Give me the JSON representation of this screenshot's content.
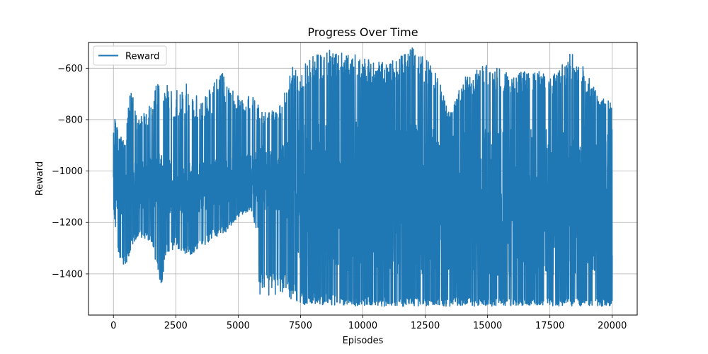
{
  "chart_data": {
    "type": "line",
    "title": "Progress Over Time",
    "xlabel": "Episodes",
    "ylabel": "Reward",
    "xlim": [
      -1000,
      21000
    ],
    "ylim": [
      -1560,
      -500
    ],
    "xticks": [
      0,
      2500,
      5000,
      7500,
      10000,
      12500,
      15000,
      17500,
      20000
    ],
    "xtick_labels": [
      "0",
      "2500",
      "5000",
      "7500",
      "10000",
      "12500",
      "15000",
      "17500",
      "20000"
    ],
    "yticks": [
      -1400,
      -1200,
      -1000,
      -800,
      -600
    ],
    "ytick_labels": [
      "−1400",
      "−1200",
      "−1000",
      "−800",
      "−600"
    ],
    "grid": true,
    "legend_position": "upper-left",
    "series": [
      {
        "name": "Reward",
        "color": "#1f77b4",
        "x_range": [
          0,
          20000
        ],
        "band_low": [
          [
            0,
            -1150
          ],
          [
            200,
            -1340
          ],
          [
            500,
            -1380
          ],
          [
            700,
            -1300
          ],
          [
            1000,
            -1250
          ],
          [
            1500,
            -1280
          ],
          [
            1800,
            -1400
          ],
          [
            1900,
            -1470
          ],
          [
            2100,
            -1320
          ],
          [
            2500,
            -1300
          ],
          [
            3000,
            -1330
          ],
          [
            3500,
            -1300
          ],
          [
            4000,
            -1260
          ],
          [
            4500,
            -1240
          ],
          [
            5000,
            -1180
          ],
          [
            5500,
            -1150
          ],
          [
            5800,
            -1250
          ],
          [
            5850,
            -1490
          ],
          [
            7000,
            -1495
          ],
          [
            7500,
            -1520
          ],
          [
            10000,
            -1525
          ],
          [
            12500,
            -1525
          ],
          [
            15000,
            -1525
          ],
          [
            17500,
            -1525
          ],
          [
            20000,
            -1525
          ]
        ],
        "band_mid_low": [
          [
            0,
            -1100
          ],
          [
            500,
            -1250
          ],
          [
            1000,
            -1150
          ],
          [
            1500,
            -1150
          ],
          [
            2000,
            -1200
          ],
          [
            2500,
            -1150
          ],
          [
            3000,
            -1200
          ],
          [
            3500,
            -1150
          ],
          [
            4000,
            -1150
          ],
          [
            4500,
            -1150
          ],
          [
            5000,
            -1100
          ],
          [
            5500,
            -1100
          ],
          [
            6000,
            -1150
          ],
          [
            6500,
            -1150
          ],
          [
            7000,
            -1200
          ],
          [
            7500,
            -1350
          ],
          [
            10000,
            -1400
          ],
          [
            12500,
            -1400
          ],
          [
            15000,
            -1420
          ],
          [
            17500,
            -1420
          ],
          [
            20000,
            -1420
          ]
        ],
        "band_mid_high": [
          [
            0,
            -850
          ],
          [
            500,
            -1000
          ],
          [
            1000,
            -950
          ],
          [
            1500,
            -950
          ],
          [
            2000,
            -900
          ],
          [
            2500,
            -1000
          ],
          [
            3000,
            -950
          ],
          [
            3500,
            -950
          ],
          [
            4000,
            -950
          ],
          [
            4500,
            -950
          ],
          [
            5000,
            -950
          ],
          [
            5500,
            -930
          ],
          [
            6000,
            -900
          ],
          [
            6500,
            -900
          ],
          [
            7000,
            -880
          ],
          [
            7500,
            -820
          ],
          [
            10000,
            -800
          ],
          [
            12500,
            -800
          ],
          [
            13400,
            -850
          ],
          [
            14000,
            -850
          ],
          [
            15000,
            -820
          ],
          [
            17500,
            -820
          ],
          [
            20000,
            -820
          ]
        ],
        "band_high": [
          [
            0,
            -760
          ],
          [
            200,
            -850
          ],
          [
            500,
            -900
          ],
          [
            600,
            -640
          ],
          [
            1000,
            -800
          ],
          [
            1500,
            -730
          ],
          [
            1800,
            -640
          ],
          [
            2000,
            -630
          ],
          [
            2500,
            -690
          ],
          [
            3000,
            -650
          ],
          [
            3500,
            -720
          ],
          [
            4000,
            -660
          ],
          [
            4500,
            -600
          ],
          [
            5000,
            -700
          ],
          [
            5500,
            -700
          ],
          [
            6000,
            -760
          ],
          [
            6500,
            -760
          ],
          [
            7000,
            -650
          ],
          [
            7200,
            -580
          ],
          [
            7500,
            -640
          ],
          [
            7700,
            -560
          ],
          [
            9000,
            -520
          ],
          [
            10000,
            -560
          ],
          [
            11000,
            -580
          ],
          [
            12000,
            -520
          ],
          [
            12500,
            -560
          ],
          [
            13000,
            -620
          ],
          [
            13400,
            -760
          ],
          [
            13500,
            -760
          ],
          [
            13600,
            -760
          ],
          [
            14000,
            -640
          ],
          [
            15000,
            -580
          ],
          [
            16000,
            -620
          ],
          [
            17000,
            -600
          ],
          [
            17500,
            -640
          ],
          [
            18500,
            -520
          ],
          [
            19000,
            -620
          ],
          [
            19500,
            -720
          ],
          [
            20000,
            -720
          ]
        ]
      }
    ]
  }
}
